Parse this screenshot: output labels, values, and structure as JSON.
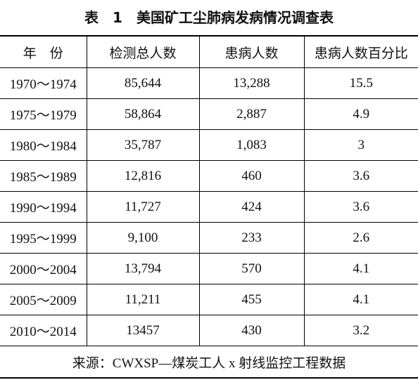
{
  "title": "表　1　美国矿工尘肺病发病情况调查表",
  "table": {
    "headers": [
      "年　份",
      "检测总人数",
      "患病人数",
      "患病人数百分比"
    ],
    "rows": [
      [
        "1970～1974",
        "85,644",
        "13,288",
        "15.5"
      ],
      [
        "1975～1979",
        "58,864",
        "2,887",
        "4.9"
      ],
      [
        "1980～1984",
        "35,787",
        "1,083",
        "3"
      ],
      [
        "1985～1989",
        "12,816",
        "460",
        "3.6"
      ],
      [
        "1990～1994",
        "11,727",
        "424",
        "3.6"
      ],
      [
        "1995～1999",
        "9,100",
        "233",
        "2.6"
      ],
      [
        "2000～2004",
        "13,794",
        "570",
        "4.1"
      ],
      [
        "2005～2009",
        "11,211",
        "455",
        "4.1"
      ],
      [
        "2010～2014",
        "13457",
        "430",
        "3.2"
      ]
    ],
    "source": "来源：CWXSP—煤炭工人 x 射线监控工程数据"
  }
}
